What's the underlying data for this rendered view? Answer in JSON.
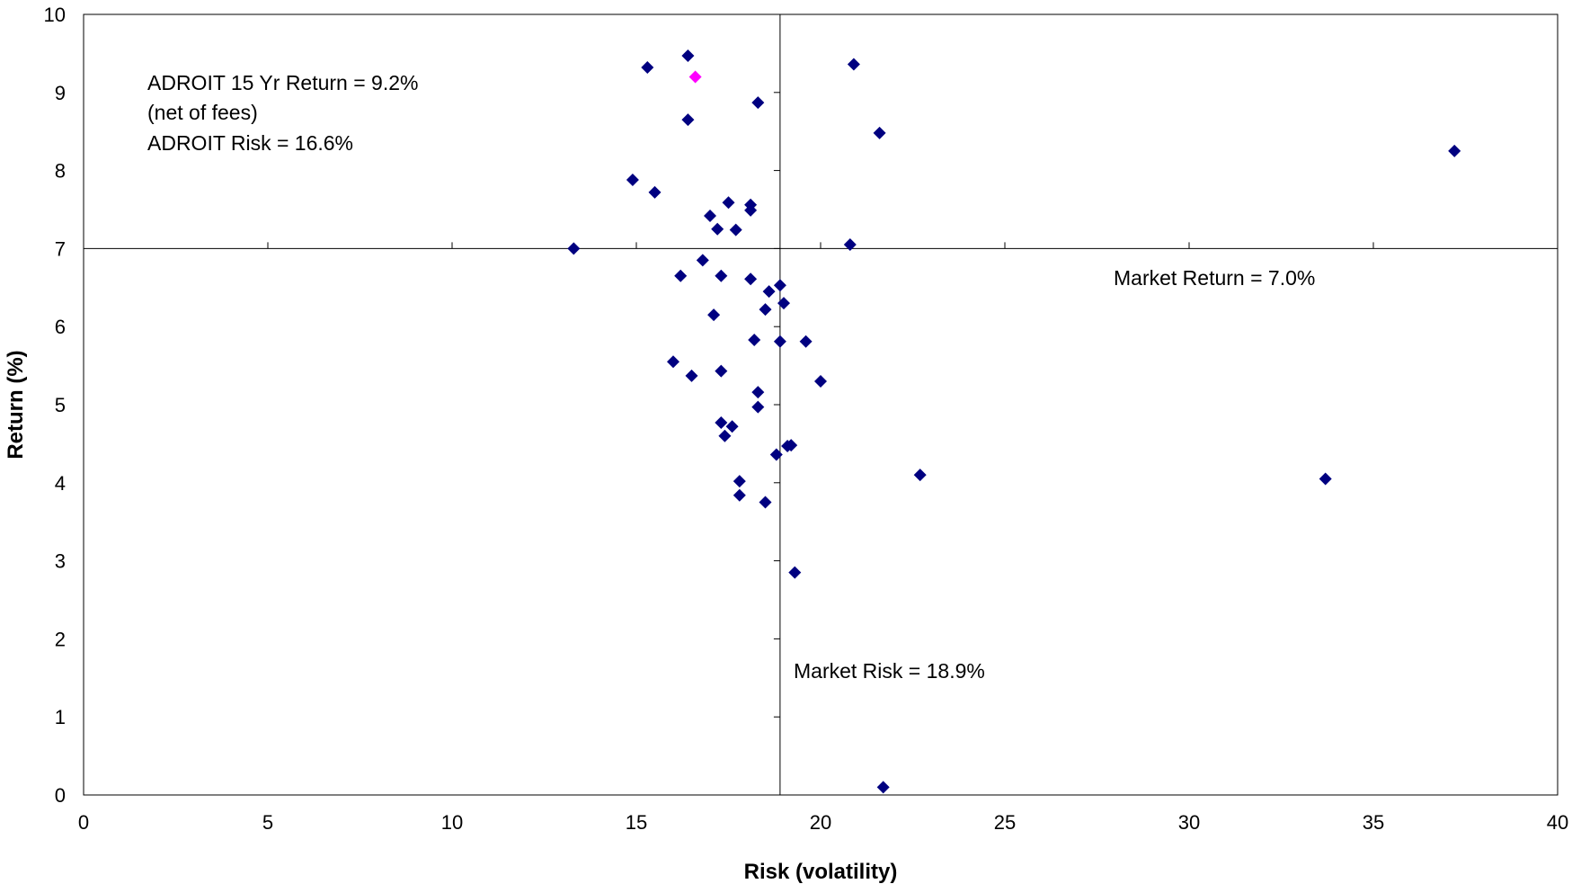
{
  "chart_data": {
    "type": "scatter",
    "xlabel": "Risk (volatility)",
    "ylabel": "Return (%)",
    "xlim": [
      0,
      40
    ],
    "ylim": [
      0,
      10
    ],
    "x_ticks": [
      0,
      5,
      10,
      15,
      20,
      25,
      30,
      35,
      40
    ],
    "y_ticks": [
      0,
      1,
      2,
      3,
      4,
      5,
      6,
      7,
      8,
      9,
      10
    ],
    "grid": false,
    "reference_lines": {
      "market_risk": 18.9,
      "market_return": 7.0
    },
    "colors": {
      "series": "#000080",
      "highlight": "#ff00ff"
    },
    "series": [
      {
        "values": [
          [
            16.4,
            9.47
          ],
          [
            15.3,
            9.32
          ],
          [
            20.9,
            9.36
          ],
          [
            18.3,
            8.87
          ],
          [
            16.4,
            8.65
          ],
          [
            21.6,
            8.48
          ],
          [
            37.2,
            8.25
          ],
          [
            14.9,
            7.88
          ],
          [
            15.5,
            7.72
          ],
          [
            17.5,
            7.59
          ],
          [
            18.1,
            7.56
          ],
          [
            18.1,
            7.49
          ],
          [
            17.0,
            7.42
          ],
          [
            17.2,
            7.25
          ],
          [
            17.7,
            7.24
          ],
          [
            20.8,
            7.05
          ],
          [
            13.3,
            7.0
          ],
          [
            16.8,
            6.85
          ],
          [
            16.2,
            6.65
          ],
          [
            17.3,
            6.65
          ],
          [
            18.1,
            6.61
          ],
          [
            18.9,
            6.53
          ],
          [
            18.6,
            6.45
          ],
          [
            19.0,
            6.3
          ],
          [
            18.5,
            6.22
          ],
          [
            17.1,
            6.15
          ],
          [
            18.2,
            5.83
          ],
          [
            18.9,
            5.81
          ],
          [
            19.6,
            5.81
          ],
          [
            16.0,
            5.55
          ],
          [
            17.3,
            5.43
          ],
          [
            16.5,
            5.37
          ],
          [
            20.0,
            5.3
          ],
          [
            18.3,
            5.16
          ],
          [
            18.3,
            4.97
          ],
          [
            17.3,
            4.77
          ],
          [
            17.6,
            4.72
          ],
          [
            17.4,
            4.6
          ],
          [
            19.2,
            4.48
          ],
          [
            19.1,
            4.47
          ],
          [
            18.8,
            4.36
          ],
          [
            22.7,
            4.1
          ],
          [
            33.7,
            4.05
          ],
          [
            17.8,
            4.02
          ],
          [
            17.8,
            3.84
          ],
          [
            18.5,
            3.75
          ],
          [
            19.3,
            2.85
          ],
          [
            21.7,
            0.1
          ]
        ]
      },
      {
        "values": [
          [
            16.6,
            9.2
          ]
        ]
      }
    ],
    "annotations": {
      "adroit_return": "ADROIT 15 Yr Return = 9.2%",
      "adroit_fees": "(net of fees)",
      "adroit_risk": "ADROIT Risk = 16.6%",
      "market_return": "Market Return = 7.0%",
      "market_risk": "Market Risk = 18.9%"
    }
  }
}
